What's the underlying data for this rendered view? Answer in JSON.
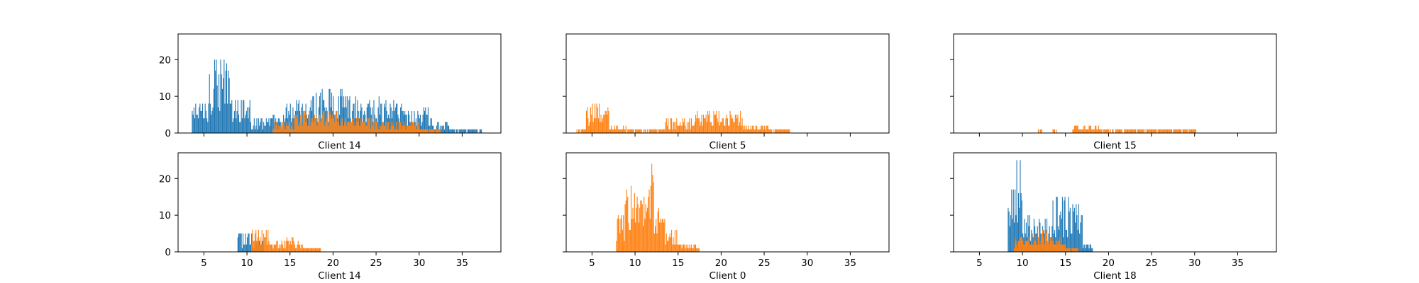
{
  "chart_data": {
    "type": "histogram",
    "layout": "2x3 grid, shared x and y axes",
    "xlim": [
      2,
      39.5
    ],
    "ylim": [
      0,
      27
    ],
    "x_ticks": [
      5,
      10,
      15,
      20,
      25,
      30,
      35
    ],
    "y_ticks": [
      0,
      10,
      20
    ],
    "colors": {
      "series_a": "#1f77b4",
      "series_b": "#ff7f0e"
    },
    "panels": [
      {
        "label": "Client 14",
        "series_a": [
          {
            "lo": 3.6,
            "hi": 5.6,
            "peak": 8
          },
          {
            "lo": 5.6,
            "hi": 8.0,
            "peak": 20
          },
          {
            "lo": 8.0,
            "hi": 10.4,
            "peak": 9
          },
          {
            "lo": 10.4,
            "hi": 12.5,
            "peak": 4
          },
          {
            "lo": 12.5,
            "hi": 14.5,
            "peak": 5
          },
          {
            "lo": 14.5,
            "hi": 17.5,
            "peak": 9
          },
          {
            "lo": 17.5,
            "hi": 21.5,
            "peak": 12
          },
          {
            "lo": 21.5,
            "hi": 25.5,
            "peak": 10
          },
          {
            "lo": 25.5,
            "hi": 28.5,
            "peak": 9
          },
          {
            "lo": 28.5,
            "hi": 31.5,
            "peak": 7
          },
          {
            "lo": 31.5,
            "hi": 33.5,
            "peak": 3
          },
          {
            "lo": 33.5,
            "hi": 37.3,
            "peak": 1
          }
        ],
        "series_b": [
          {
            "lo": 13.0,
            "hi": 15.5,
            "peak": 3
          },
          {
            "lo": 15.5,
            "hi": 20.5,
            "peak": 6
          },
          {
            "lo": 20.5,
            "hi": 25.0,
            "peak": 4
          },
          {
            "lo": 25.0,
            "hi": 30.0,
            "peak": 3
          },
          {
            "lo": 30.0,
            "hi": 32.5,
            "peak": 1
          }
        ]
      },
      {
        "label": "Client 5",
        "series_a": [],
        "series_b": [
          {
            "lo": 3.2,
            "hi": 4.3,
            "peak": 1
          },
          {
            "lo": 4.3,
            "hi": 7.0,
            "peak": 8
          },
          {
            "lo": 7.0,
            "hi": 9.0,
            "peak": 2
          },
          {
            "lo": 9.0,
            "hi": 11.5,
            "peak": 1
          },
          {
            "lo": 11.5,
            "hi": 13.5,
            "peak": 1
          },
          {
            "lo": 13.5,
            "hi": 17.0,
            "peak": 4
          },
          {
            "lo": 17.0,
            "hi": 22.5,
            "peak": 6
          },
          {
            "lo": 22.5,
            "hi": 25.5,
            "peak": 2
          },
          {
            "lo": 25.5,
            "hi": 28.0,
            "peak": 1
          }
        ]
      },
      {
        "label": "Client 15",
        "series_a": [],
        "series_b": [
          {
            "lo": 11.8,
            "hi": 12.3,
            "peak": 1
          },
          {
            "lo": 13.5,
            "hi": 14.0,
            "peak": 1
          },
          {
            "lo": 15.8,
            "hi": 19.0,
            "peak": 2
          },
          {
            "lo": 19.0,
            "hi": 24.0,
            "peak": 1
          },
          {
            "lo": 24.0,
            "hi": 27.0,
            "peak": 1
          },
          {
            "lo": 27.0,
            "hi": 30.2,
            "peak": 1
          }
        ]
      },
      {
        "label": "Client 14",
        "series_a": [
          {
            "lo": 8.9,
            "hi": 10.6,
            "peak": 5
          },
          {
            "lo": 10.6,
            "hi": 12.0,
            "peak": 3
          }
        ],
        "series_b": [
          {
            "lo": 10.5,
            "hi": 12.5,
            "peak": 6
          },
          {
            "lo": 12.5,
            "hi": 14.5,
            "peak": 3
          },
          {
            "lo": 14.5,
            "hi": 16.5,
            "peak": 4
          },
          {
            "lo": 16.5,
            "hi": 18.6,
            "peak": 1
          }
        ]
      },
      {
        "label": "Client 0",
        "series_a": [],
        "series_b": [
          {
            "lo": 7.8,
            "hi": 8.8,
            "peak": 10
          },
          {
            "lo": 8.8,
            "hi": 10.0,
            "peak": 18
          },
          {
            "lo": 10.0,
            "hi": 11.2,
            "peak": 15
          },
          {
            "lo": 11.2,
            "hi": 12.2,
            "peak": 24
          },
          {
            "lo": 12.2,
            "hi": 13.5,
            "peak": 16
          },
          {
            "lo": 13.5,
            "hi": 15.0,
            "peak": 6
          },
          {
            "lo": 15.0,
            "hi": 17.5,
            "peak": 2
          }
        ]
      },
      {
        "label": "Client 18",
        "series_a": [
          {
            "lo": 8.3,
            "hi": 9.3,
            "peak": 17
          },
          {
            "lo": 9.3,
            "hi": 10.0,
            "peak": 25
          },
          {
            "lo": 10.0,
            "hi": 11.0,
            "peak": 10
          },
          {
            "lo": 11.0,
            "hi": 13.5,
            "peak": 9
          },
          {
            "lo": 13.5,
            "hi": 15.5,
            "peak": 15
          },
          {
            "lo": 15.5,
            "hi": 17.0,
            "peak": 13
          },
          {
            "lo": 17.0,
            "hi": 18.2,
            "peak": 2
          }
        ],
        "series_b": [
          {
            "lo": 9.0,
            "hi": 11.0,
            "peak": 4
          },
          {
            "lo": 11.0,
            "hi": 13.0,
            "peak": 6
          },
          {
            "lo": 13.0,
            "hi": 15.0,
            "peak": 4
          },
          {
            "lo": 15.0,
            "hi": 16.5,
            "peak": 1
          }
        ]
      }
    ]
  }
}
